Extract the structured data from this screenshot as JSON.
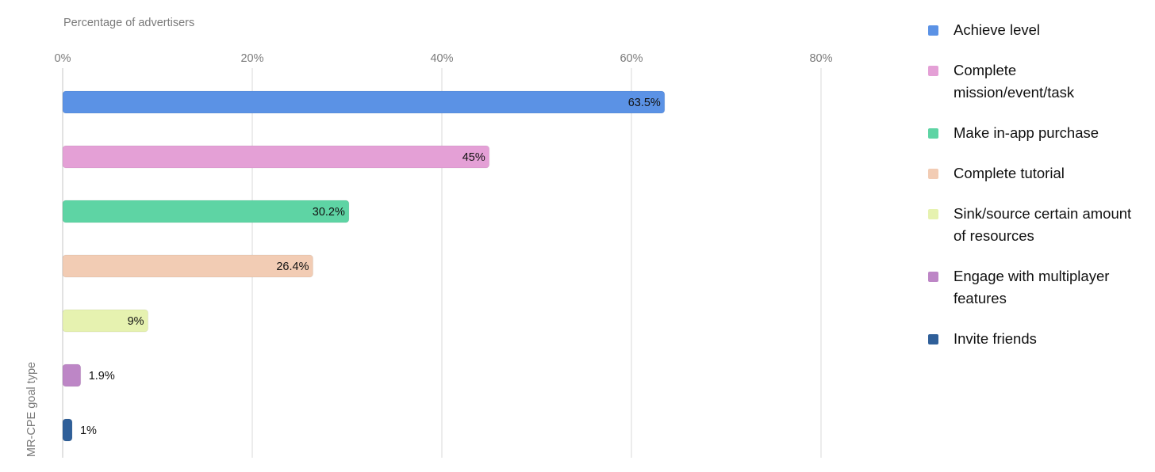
{
  "chart_data": {
    "type": "bar",
    "orientation": "horizontal",
    "title": "",
    "xlabel": "Percentage of advertisers",
    "ylabel": "MR-CPE goal type",
    "xlim": [
      0,
      100
    ],
    "x_ticks": [
      "0%",
      "20%",
      "40%",
      "60%",
      "80%"
    ],
    "grid": true,
    "legend_position": "right",
    "categories": [
      "Achieve level",
      "Complete mission/event/task",
      "Make in-app purchase",
      "Complete tutorial",
      "Sink/source certain amount of resources",
      "Engage with multiplayer features",
      "Invite friends"
    ],
    "values": [
      63.5,
      45,
      30.2,
      26.4,
      9,
      1.9,
      1
    ],
    "value_labels": [
      "63.5%",
      "45%",
      "30.2%",
      "26.4%",
      "9%",
      "1.9%",
      "1%"
    ],
    "colors": [
      "#5b92e5",
      "#e4a0d6",
      "#5ed4a4",
      "#f2ccb4",
      "#e6f2b0",
      "#bd86c6",
      "#2f5f99"
    ],
    "legend": {
      "lines": [
        [
          "Achieve level"
        ],
        [
          "Complete",
          "mission/event/task"
        ],
        [
          "Make in-app purchase"
        ],
        [
          "Complete tutorial"
        ],
        [
          "Sink/source certain amount",
          "of resources"
        ],
        [
          "Engage with multiplayer",
          "features"
        ],
        [
          "Invite friends"
        ]
      ]
    }
  }
}
